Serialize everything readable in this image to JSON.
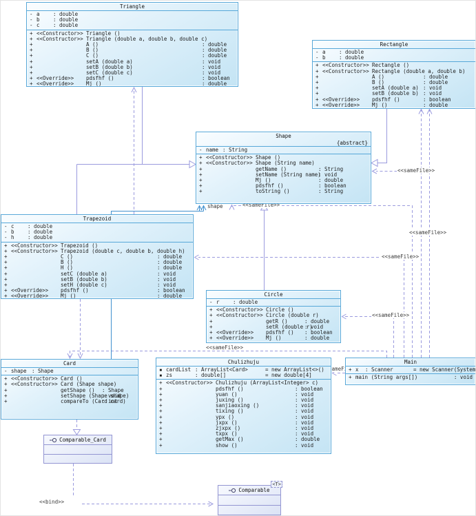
{
  "labels": {
    "same_file": "<<sameFile>>",
    "bind": "<<bind>>",
    "shape_assoc": "shape"
  },
  "colors": {
    "class_border": "#56a7d8",
    "class_fill_light": "#fafdff",
    "class_fill_dark": "#c4e4f4",
    "wire_lavender": "#9a9ade",
    "wire_blue": "#3f8fce",
    "interface_border": "#9395d2"
  },
  "icons": {
    "interface_lollipop": "provided-interface-icon"
  },
  "classes": {
    "triangle": {
      "name": "Triangle",
      "attrs": [
        {
          "v": "-",
          "n": "a",
          "t": ": double"
        },
        {
          "v": "-",
          "n": "b",
          "t": ": double"
        },
        {
          "v": "-",
          "n": "c",
          "t": ": double"
        }
      ],
      "methods": [
        {
          "v": "+",
          "s": "<<Constructor>>",
          "n": "Triangle ()",
          "t": ""
        },
        {
          "v": "+",
          "s": "<<Constructor>>",
          "n": "Triangle (double a, double b, double c)",
          "t": ""
        },
        {
          "v": "+",
          "s": "",
          "n": "A ()",
          "t": ": double"
        },
        {
          "v": "+",
          "s": "",
          "n": "B ()",
          "t": ": double"
        },
        {
          "v": "+",
          "s": "",
          "n": "C ()",
          "t": ": double"
        },
        {
          "v": "+",
          "s": "",
          "n": "setA (double a)",
          "t": ": void"
        },
        {
          "v": "+",
          "s": "",
          "n": "setB (double b)",
          "t": ": void"
        },
        {
          "v": "+",
          "s": "",
          "n": "setC (double c)",
          "t": ": void"
        },
        {
          "v": "+",
          "s": "<<Override>>",
          "n": "pdsfhf ()",
          "t": ": boolean"
        },
        {
          "v": "+",
          "s": "<<Override>>",
          "n": "Mj ()",
          "t": ": double"
        }
      ]
    },
    "rectangle": {
      "name": "Rectangle",
      "attrs": [
        {
          "v": "-",
          "n": "a",
          "t": ": double"
        },
        {
          "v": "-",
          "n": "b",
          "t": ": double"
        }
      ],
      "methods": [
        {
          "v": "+",
          "s": "<<Constructor>>",
          "n": "Rectangle ()",
          "t": ""
        },
        {
          "v": "+",
          "s": "<<Constructor>>",
          "n": "Rectangle (double a, double b)",
          "t": ""
        },
        {
          "v": "+",
          "s": "",
          "n": "A ()",
          "t": ": double"
        },
        {
          "v": "+",
          "s": "",
          "n": "B ()",
          "t": ": double"
        },
        {
          "v": "+",
          "s": "",
          "n": "setA (double a)",
          "t": ": void"
        },
        {
          "v": "+",
          "s": "",
          "n": "setB (double b)",
          "t": ": void"
        },
        {
          "v": "+",
          "s": "<<Override>>",
          "n": "pdsfhf ()",
          "t": ": boolean"
        },
        {
          "v": "+",
          "s": "<<Override>>",
          "n": "Mj ()",
          "t": ": double"
        }
      ]
    },
    "shape": {
      "name": "Shape",
      "modifier": "{abstract}",
      "attrs": [
        {
          "v": "-",
          "n": "name",
          "t": ": String"
        }
      ],
      "methods": [
        {
          "v": "+",
          "s": "<<Constructor>>",
          "n": "Shape ()",
          "t": ""
        },
        {
          "v": "+",
          "s": "<<Constructor>>",
          "n": "Shape (String name)",
          "t": ""
        },
        {
          "v": "+",
          "s": "",
          "n": "getName ()",
          "t": ": String"
        },
        {
          "v": "+",
          "s": "",
          "n": "setName (String name)",
          "t": ": void"
        },
        {
          "v": "+",
          "s": "",
          "n": "Mj ()",
          "t": ": double"
        },
        {
          "v": "+",
          "s": "",
          "n": "pdsfhf ()",
          "t": ": boolean"
        },
        {
          "v": "+",
          "s": "",
          "n": "toString ()",
          "t": ": String"
        }
      ]
    },
    "trapezoid": {
      "name": "Trapezoid",
      "attrs": [
        {
          "v": "-",
          "n": "c",
          "t": ": double"
        },
        {
          "v": "-",
          "n": "b",
          "t": ": double"
        },
        {
          "v": "-",
          "n": "h",
          "t": ": double"
        }
      ],
      "methods": [
        {
          "v": "+",
          "s": "<<Constructor>>",
          "n": "Trapezoid ()",
          "t": ""
        },
        {
          "v": "+",
          "s": "<<Constructor>>",
          "n": "Trapezoid (double c, double b, double h)",
          "t": ""
        },
        {
          "v": "+",
          "s": "",
          "n": "C ()",
          "t": ": double"
        },
        {
          "v": "+",
          "s": "",
          "n": "B ()",
          "t": ": double"
        },
        {
          "v": "+",
          "s": "",
          "n": "H ()",
          "t": ": double"
        },
        {
          "v": "+",
          "s": "",
          "n": "setC (double a)",
          "t": ": void"
        },
        {
          "v": "+",
          "s": "",
          "n": "setB (double b)",
          "t": ": void"
        },
        {
          "v": "+",
          "s": "",
          "n": "setH (double c)",
          "t": ": void"
        },
        {
          "v": "+",
          "s": "<<Override>>",
          "n": "pdsfhf ()",
          "t": ": boolean"
        },
        {
          "v": "+",
          "s": "<<Override>>",
          "n": "Mj ()",
          "t": ": double"
        }
      ]
    },
    "circle": {
      "name": "Circle",
      "attrs": [
        {
          "v": "-",
          "n": "r",
          "t": ": double"
        }
      ],
      "methods": [
        {
          "v": "+",
          "s": "<<Constructor>>",
          "n": "Circle ()",
          "t": ""
        },
        {
          "v": "+",
          "s": "<<Constructor>>",
          "n": "Circle (double r)",
          "t": ""
        },
        {
          "v": "+",
          "s": "",
          "n": "getR ()",
          "t": ": double"
        },
        {
          "v": "+",
          "s": "",
          "n": "setR (double r)",
          "t": ": void"
        },
        {
          "v": "+",
          "s": "<<Override>>",
          "n": "pdsfhf ()",
          "t": ": boolean"
        },
        {
          "v": "+",
          "s": "<<Override>>",
          "n": "Mj ()",
          "t": ": double"
        }
      ]
    },
    "card": {
      "name": "Card",
      "attrs": [
        {
          "v": "-",
          "n": "shape",
          "t": ": Shape"
        }
      ],
      "methods": [
        {
          "v": "+",
          "s": "<<Constructor>>",
          "n": "Card ()",
          "t": ""
        },
        {
          "v": "+",
          "s": "<<Constructor>>",
          "n": "Card (Shape shape)",
          "t": ""
        },
        {
          "v": "+",
          "s": "",
          "n": "getShape ()",
          "t": ": Shape"
        },
        {
          "v": "+",
          "s": "",
          "n": "setShape (Shape shape)",
          "t": ": void"
        },
        {
          "v": "+",
          "s": "",
          "n": "compareTo (Card card)",
          "t": ": int"
        }
      ]
    },
    "chulizhuju": {
      "name": "Chulizhuju",
      "attrs": [
        {
          "v": "▪",
          "n": "cardList",
          "t": ": ArrayList<Card>",
          "d": "= new ArrayList<>()"
        },
        {
          "v": "▪",
          "n": "zs",
          "t": ": double[]",
          "d": "= new double[4]"
        }
      ],
      "methods": [
        {
          "v": "+",
          "s": "<<Constructor>>",
          "n": "Chulizhuju (ArrayList<Integer> c)",
          "t": ""
        },
        {
          "v": "+",
          "s": "",
          "n": "pdsfhf ()",
          "t": ": boolean"
        },
        {
          "v": "+",
          "s": "",
          "n": "yuan ()",
          "t": ": void"
        },
        {
          "v": "+",
          "s": "",
          "n": "juxing ()",
          "t": ": void"
        },
        {
          "v": "+",
          "s": "",
          "n": "sanjiaoxing ()",
          "t": ": void"
        },
        {
          "v": "+",
          "s": "",
          "n": "tixing ()",
          "t": ": void"
        },
        {
          "v": "+",
          "s": "",
          "n": "ypx ()",
          "t": ": void"
        },
        {
          "v": "+",
          "s": "",
          "n": "jxpx ()",
          "t": ": void"
        },
        {
          "v": "+",
          "s": "",
          "n": "zjxpx ()",
          "t": ": void"
        },
        {
          "v": "+",
          "s": "",
          "n": "txpx ()",
          "t": ": void"
        },
        {
          "v": "+",
          "s": "",
          "n": "getMax ()",
          "t": ": double"
        },
        {
          "v": "+",
          "s": "",
          "n": "show ()",
          "t": ": void"
        }
      ]
    },
    "main": {
      "name": "Main",
      "attrs": [
        {
          "v": "+",
          "n": "x",
          "t": ": Scanner",
          "d": "= new Scanner(System.in)"
        }
      ],
      "methods": [
        {
          "v": "+",
          "s": "",
          "n": "main (String args[])",
          "t": ": void"
        }
      ]
    },
    "comparable_card": {
      "name": "Comparable_Card"
    },
    "comparable": {
      "name": "Comparable",
      "tag": "<T>"
    }
  }
}
